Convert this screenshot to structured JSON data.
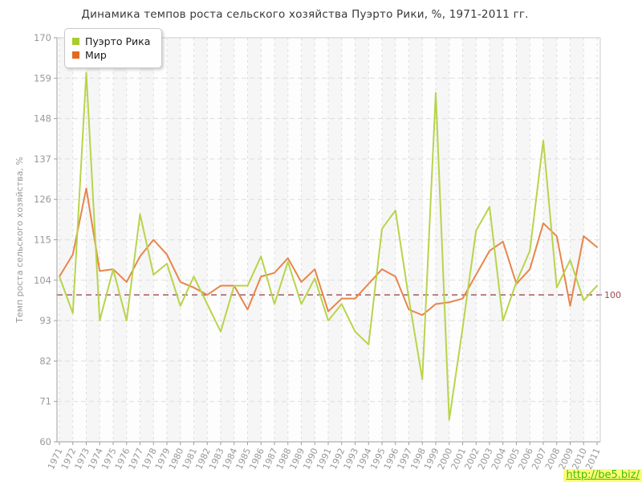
{
  "title": "Динамика темпов роста сельского хозяйства Пуэрто Рики, %, 1971-2011 гг.",
  "watermark": "http://be5.biz/",
  "legend": [
    {
      "label": "Пуэрто Рика",
      "color": "#a8cc2c"
    },
    {
      "label": "Мир",
      "color": "#e06a22"
    }
  ],
  "refline": {
    "value": 100,
    "label": "100",
    "color": "#9c4a50"
  },
  "colors": {
    "grid": "#dddddd",
    "axis": "#9e9e9e",
    "border": "#cccccc",
    "tick_text": "#999999",
    "plot_bg": "#fdfdfd",
    "stripe": "#f6f6f6"
  },
  "chart_data": {
    "type": "line",
    "title": "Динамика темпов роста сельского хозяйства Пуэрто Рики, %, 1971-2011 гг.",
    "xlabel": "",
    "ylabel": "Темп роста сельского хозяйства, %",
    "ylim": [
      60,
      170
    ],
    "yticks": [
      60,
      71,
      82,
      93,
      104,
      115,
      126,
      137,
      148,
      159,
      170
    ],
    "grid": true,
    "legend_position": "top-left",
    "x": [
      1971,
      1972,
      1973,
      1974,
      1975,
      1976,
      1977,
      1978,
      1979,
      1980,
      1981,
      1982,
      1983,
      1984,
      1985,
      1986,
      1987,
      1988,
      1989,
      1990,
      1991,
      1992,
      1993,
      1994,
      1995,
      1996,
      1997,
      1998,
      1999,
      2000,
      2001,
      2002,
      2003,
      2004,
      2005,
      2006,
      2007,
      2008,
      2009,
      2010,
      2011
    ],
    "series": [
      {
        "name": "Пуэрто Рика",
        "color": "#b8d44b",
        "values": [
          105,
          95,
          160.5,
          93,
          107,
          93,
          122,
          105.5,
          108.5,
          97,
          105,
          97.5,
          90,
          102.5,
          102.5,
          110.5,
          97.5,
          109,
          97.5,
          104.5,
          93,
          97.5,
          90,
          86.5,
          118,
          123,
          99,
          77,
          155,
          66,
          91,
          117.5,
          124,
          93,
          103.5,
          112,
          142,
          102,
          109.5,
          98.5,
          102.5
        ]
      },
      {
        "name": "Мир",
        "color": "#e8854a",
        "values": [
          105,
          111,
          129,
          106.5,
          107,
          103.5,
          110.5,
          115,
          111,
          103.5,
          102,
          100,
          102.5,
          102.5,
          96,
          105,
          106,
          110,
          103.5,
          107,
          95.5,
          99,
          99,
          103,
          107,
          105,
          96,
          94.5,
          97.5,
          98,
          99,
          105.5,
          112,
          114.5,
          103,
          107,
          119.5,
          116,
          97,
          116,
          113
        ]
      }
    ]
  }
}
